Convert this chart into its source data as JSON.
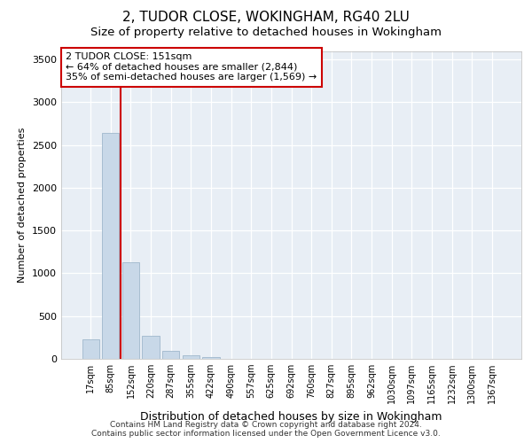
{
  "title": "2, TUDOR CLOSE, WOKINGHAM, RG40 2LU",
  "subtitle": "Size of property relative to detached houses in Wokingham",
  "xlabel": "Distribution of detached houses by size in Wokingham",
  "ylabel": "Number of detached properties",
  "bar_labels": [
    "17sqm",
    "85sqm",
    "152sqm",
    "220sqm",
    "287sqm",
    "355sqm",
    "422sqm",
    "490sqm",
    "557sqm",
    "625sqm",
    "692sqm",
    "760sqm",
    "827sqm",
    "895sqm",
    "962sqm",
    "1030sqm",
    "1097sqm",
    "1165sqm",
    "1232sqm",
    "1300sqm",
    "1367sqm"
  ],
  "bar_heights": [
    230,
    2640,
    1130,
    270,
    90,
    45,
    20,
    0,
    0,
    0,
    0,
    0,
    0,
    0,
    0,
    0,
    0,
    0,
    0,
    0,
    0
  ],
  "bar_color": "#c8d8e8",
  "bar_edgecolor": "#a0b8cc",
  "vline_xindex": 1.5,
  "vline_color": "#cc0000",
  "annotation_line1": "2 TUDOR CLOSE: 151sqm",
  "annotation_line2": "← 64% of detached houses are smaller (2,844)",
  "annotation_line3": "35% of semi-detached houses are larger (1,569) →",
  "annotation_box_facecolor": "#ffffff",
  "annotation_box_edgecolor": "#cc0000",
  "ylim": [
    0,
    3600
  ],
  "yticks": [
    0,
    500,
    1000,
    1500,
    2000,
    2500,
    3000,
    3500
  ],
  "grid_color": "#d0d8e8",
  "plot_background": "#e8eef5",
  "footer1": "Contains HM Land Registry data © Crown copyright and database right 2024.",
  "footer2": "Contains public sector information licensed under the Open Government Licence v3.0.",
  "title_fontsize": 11,
  "subtitle_fontsize": 9.5,
  "annotation_fontsize": 8,
  "tick_fontsize": 7,
  "xlabel_fontsize": 9,
  "ylabel_fontsize": 8,
  "footer_fontsize": 6.5
}
